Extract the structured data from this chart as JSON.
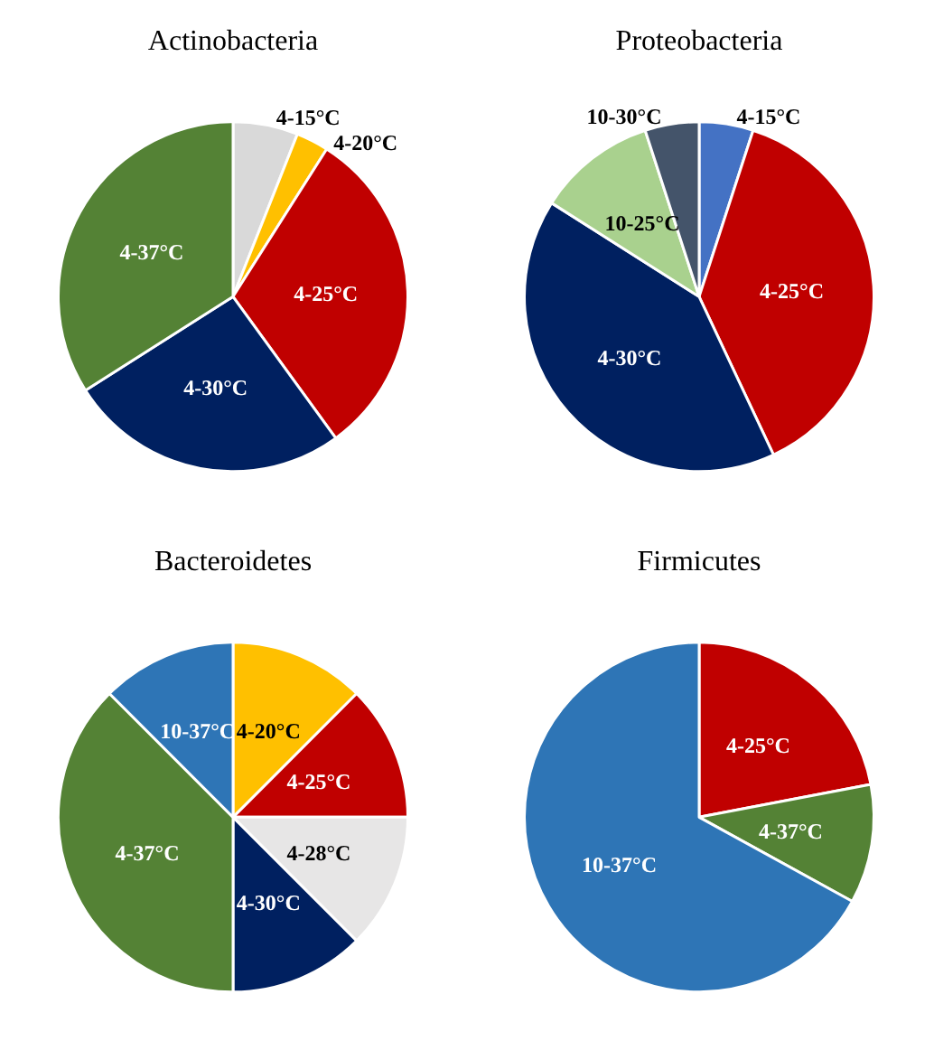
{
  "chart_data": [
    {
      "type": "pie",
      "title": "Actinobacteria",
      "categories": [
        "4-15°C",
        "4-20°C",
        "4-25°C",
        "4-30°C",
        "4-37°C"
      ],
      "values": [
        6,
        3,
        31,
        26,
        34
      ],
      "colors": [
        "#d9d9d9",
        "#ffc000",
        "#c00000",
        "#002060",
        "#548235"
      ]
    },
    {
      "type": "pie",
      "title": "Proteobacteria",
      "categories": [
        "4-15°C",
        "4-25°C",
        "4-30°C",
        "10-25°C",
        "10-30°C"
      ],
      "values": [
        5,
        38,
        41,
        11,
        5
      ],
      "colors": [
        "#4472c4",
        "#c00000",
        "#002060",
        "#a9d18e",
        "#44546a"
      ]
    },
    {
      "type": "pie",
      "title": "Bacteroidetes",
      "categories": [
        "4-20°C",
        "4-25°C",
        "4-28°C",
        "4-30°C",
        "4-37°C",
        "10-37°C"
      ],
      "values": [
        12.5,
        12.5,
        12.5,
        12.5,
        37.5,
        12.5
      ],
      "colors": [
        "#ffc000",
        "#c00000",
        "#e7e6e6",
        "#002060",
        "#548235",
        "#2e75b6"
      ]
    },
    {
      "type": "pie",
      "title": "Firmicutes",
      "categories": [
        "4-25°C",
        "4-37°C",
        "10-37°C"
      ],
      "values": [
        22,
        11,
        67
      ],
      "colors": [
        "#c00000",
        "#548235",
        "#2e75b6"
      ]
    }
  ]
}
